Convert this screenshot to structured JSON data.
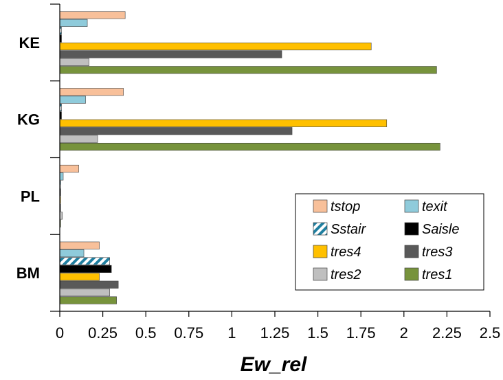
{
  "chart_data": {
    "type": "bar",
    "orientation": "horizontal",
    "categories": [
      "BM",
      "PL",
      "KG",
      "KE"
    ],
    "xlabel": "Ew_rel",
    "ylabel": "",
    "xlim": [
      0,
      2.5
    ],
    "xticks": [
      "0",
      "0.25",
      "0.5",
      "0.75",
      "1",
      "1.25",
      "1.5",
      "1.75",
      "2",
      "2.25",
      "2.5"
    ],
    "grid": false,
    "legend_position": "bottom-right",
    "series": [
      {
        "name": "tstop",
        "color": "#F8C09A",
        "values": [
          0.23,
          0.11,
          0.37,
          0.38
        ]
      },
      {
        "name": "texit",
        "color": "#8FCBDB",
        "values": [
          0.14,
          0.02,
          0.15,
          0.16
        ]
      },
      {
        "name": "Sstair",
        "color": "#1F7FA0",
        "pattern": "diagonal-hatch",
        "values": [
          0.29,
          0.005,
          0.01,
          0.01
        ]
      },
      {
        "name": "Saisle",
        "color": "#000000",
        "values": [
          0.3,
          0.005,
          0.01,
          0.01
        ]
      },
      {
        "name": "tres4",
        "color": "#FFC000",
        "values": [
          0.23,
          0.005,
          1.9,
          1.81
        ]
      },
      {
        "name": "tres3",
        "color": "#595959",
        "values": [
          0.34,
          0.005,
          1.35,
          1.29
        ]
      },
      {
        "name": "tres2",
        "color": "#BFBFBF",
        "values": [
          0.29,
          0.015,
          0.22,
          0.17
        ]
      },
      {
        "name": "tres1",
        "color": "#77933C",
        "values": [
          0.33,
          0.005,
          2.21,
          2.19
        ]
      }
    ],
    "legend_order": [
      "tstop",
      "texit",
      "Sstair",
      "Saisle",
      "tres4",
      "tres3",
      "tres2",
      "tres1"
    ]
  }
}
